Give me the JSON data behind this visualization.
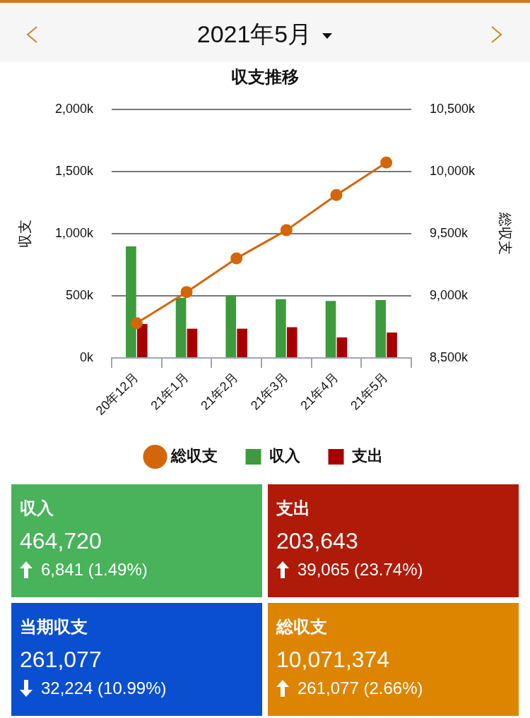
{
  "chart_data": [
    {
      "type": "bar",
      "title": "収支推移",
      "annotations": [
        "2021年5月"
      ],
      "ylabel": "収支",
      "y2label": "総収支",
      "categories": [
        "20年12月",
        "21年1月",
        "21年2月",
        "21年3月",
        "21年4月",
        "21年5月"
      ],
      "series": [
        {
          "name": "収入",
          "color": "#3d9a3d",
          "values": [
            897,
            482,
            503,
            472,
            458,
            465
          ]
        },
        {
          "name": "支出",
          "color": "#a80000",
          "values": [
            272,
            235,
            235,
            247,
            165,
            204
          ]
        },
        {
          "name": "総収支",
          "type": "line",
          "axis": "y2",
          "color": "#d4660a",
          "values": [
            8779,
            9030,
            9301,
            9527,
            9810,
            10071
          ]
        }
      ],
      "ylim": [
        0,
        2000
      ],
      "yticks": [
        {
          "value": 0,
          "label": "0k"
        },
        {
          "value": 500,
          "label": "500k"
        },
        {
          "value": 1000,
          "label": "1,000k"
        },
        {
          "value": 1500,
          "label": "1,500k"
        },
        {
          "value": 2000,
          "label": "2,000k"
        }
      ],
      "y2lim": [
        8500,
        10500
      ],
      "y2ticks": [
        {
          "value": 8500,
          "label": "8,500k"
        },
        {
          "value": 9000,
          "label": "9,000k"
        },
        {
          "value": 9500,
          "label": "9,500k"
        },
        {
          "value": 10000,
          "label": "10,000k"
        },
        {
          "value": 10500,
          "label": "10,500k"
        }
      ],
      "grid": "y",
      "legend": "bottom",
      "marker": "circle",
      "line_style": "solid"
    },
    {
      "type": "other",
      "colors": [
        "#48b35a",
        "#b01a08",
        "#0a4fcf",
        "#dd8500"
      ],
      "annotations": [
        "収入",
        "464,720",
        "6,841 (1.49%)",
        "支出",
        "203,643",
        "39,065 (23.74%)",
        "当期収支",
        "261,077",
        "32,224 (10.99%)",
        "総収支",
        "10,071,374",
        "261,077 (2.66%)"
      ]
    }
  ]
}
